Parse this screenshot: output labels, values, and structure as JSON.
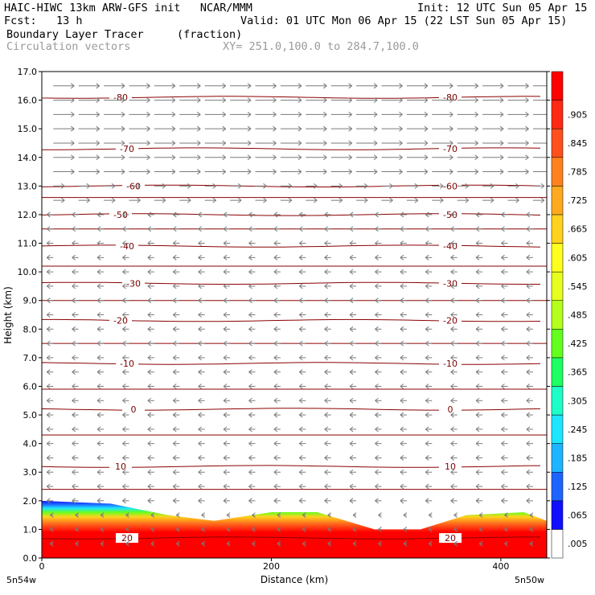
{
  "header": {
    "line1_left": "HAIC-HIWC 13km ARW-GFS init   NCAR/MMM",
    "line1_right": "Init: 12 UTC Sun 05 Apr 15",
    "line2_left": "Fcst:   13 h",
    "line2_right": "Valid: 01 UTC Mon 06 Apr 15 (22 LST Sun 05 Apr 15)",
    "line3_left": "Boundary Layer Tracer",
    "line3_mid": "(fraction)",
    "line4_left": "Circulation vectors",
    "line4_mid": "XY= 251.0,100.0 to 284.7,100.0"
  },
  "chart_data": {
    "type": "heatmap",
    "xlabel": "Distance (km)",
    "ylabel": "Height (km)",
    "xlim": [
      0,
      440
    ],
    "ylim": [
      0,
      17
    ],
    "x_ticks": [
      0,
      200,
      400
    ],
    "y_ticks": [
      "0.0",
      "1.0",
      "2.0",
      "3.0",
      "4.0",
      "5.0",
      "6.0",
      "7.0",
      "8.0",
      "9.0",
      "10.0",
      "11.0",
      "12.0",
      "13.0",
      "14.0",
      "15.0",
      "16.0",
      "17.0"
    ],
    "x_endpoint_labels": [
      "5n54w",
      "5n50w"
    ],
    "colorbar_labels": [
      ".005",
      ".065",
      ".125",
      ".185",
      ".245",
      ".305",
      ".365",
      ".425",
      ".485",
      ".545",
      ".605",
      ".665",
      ".725",
      ".785",
      ".845",
      ".905"
    ],
    "colorbar_colors": [
      "#ffffff",
      "#1010ff",
      "#1e64ff",
      "#1eb4ff",
      "#1ee6ff",
      "#1effc8",
      "#1eff64",
      "#64ff1e",
      "#b4ff1e",
      "#e6ff1e",
      "#ffff1e",
      "#ffd21e",
      "#ffaa1e",
      "#ff821e",
      "#ff501e",
      "#ff2814",
      "#ff0000"
    ],
    "temperature_contours": [
      {
        "label": "-80",
        "height": 16.1
      },
      {
        "label": "-70",
        "height": 14.3
      },
      {
        "label": "-60",
        "height": 13.0
      },
      {
        "label": "-50",
        "height": 12.0
      },
      {
        "label": "-40",
        "height": 10.9
      },
      {
        "label": "-30",
        "height": 9.6
      },
      {
        "label": "-20",
        "height": 8.3
      },
      {
        "label": "-10",
        "height": 6.8
      },
      {
        "label": "0",
        "height": 5.2
      },
      {
        "label": "10",
        "height": 3.2
      },
      {
        "label": "20",
        "height": 0.7
      }
    ],
    "tracer_region": {
      "base_value": 0.98,
      "top_profile": [
        [
          0,
          2.0
        ],
        [
          60,
          1.9
        ],
        [
          110,
          1.5
        ],
        [
          150,
          1.3
        ],
        [
          200,
          1.6
        ],
        [
          240,
          1.6
        ],
        [
          290,
          1.0
        ],
        [
          330,
          1.0
        ],
        [
          370,
          1.5
        ],
        [
          420,
          1.6
        ],
        [
          440,
          1.3
        ]
      ]
    },
    "vectors": {
      "upper_direction": "east",
      "lower_direction": "west"
    }
  },
  "colors": {
    "contour": "#8b0000",
    "vector": "#7a7a7a"
  }
}
